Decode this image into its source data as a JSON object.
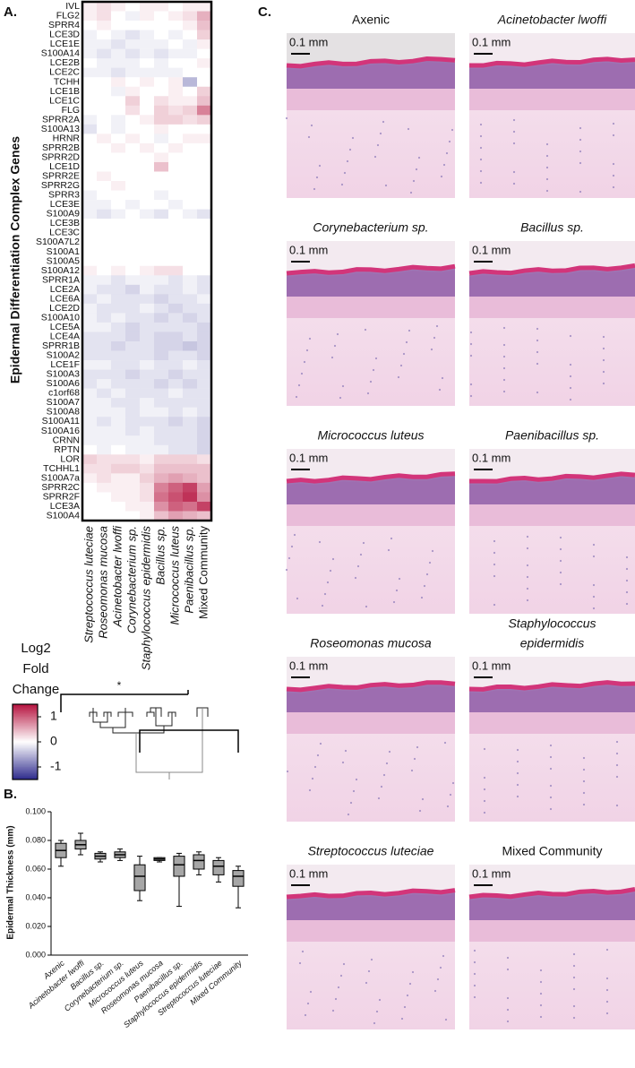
{
  "chart_data": [
    {
      "type": "heatmap",
      "panel": "A.",
      "ylabel": "Epidermal Differentiation Complex Genes",
      "rows": [
        "IVL",
        "FLG2",
        "SPRR4",
        "LCE3D",
        "LCE1E",
        "S100A14",
        "LCE2B",
        "LCE2C",
        "TCHH",
        "LCE1B",
        "LCE1C",
        "FLG",
        "SPRR2A",
        "S100A13",
        "HRNR",
        "SPRR2B",
        "SPRR2D",
        "LCE1D",
        "SPRR2E",
        "SPRR2G",
        "SPRR3",
        "LCE3E",
        "S100A9",
        "LCE3B",
        "LCE3C",
        "S100A7L2",
        "S100A1",
        "S100A5",
        "S100A12",
        "SPRR1A",
        "LCE2A",
        "LCE6A",
        "LCE2D",
        "S100A10",
        "LCE5A",
        "LCE4A",
        "SPRR1B",
        "S100A2",
        "LCE1F",
        "S100A3",
        "S100A6",
        "c1orf68",
        "S100A7",
        "S100A8",
        "S100A11",
        "S100A16",
        "CRNN",
        "RPTN",
        "LOR",
        "TCHHL1",
        "S100A7a",
        "SPRR2C",
        "SPRR2F",
        "LCE3A",
        "S100A4"
      ],
      "columns": [
        "Streptococcus luteciae",
        "Roseomonas mucosa",
        "Acinetobacter lwoffi",
        "Corynebacterium sp.",
        "Staphylococcus epidermidis",
        "Bacillus sp.",
        "Micrococcus luteus",
        "Paenibacillus sp.",
        "Mixed Community"
      ],
      "italic": [
        true,
        true,
        true,
        true,
        true,
        true,
        true,
        true,
        false
      ],
      "values": [
        [
          0.1,
          0.2,
          0.1,
          0,
          0.1,
          0.1,
          0,
          0.1,
          0.1
        ],
        [
          0.1,
          0.2,
          0,
          -0.1,
          0.1,
          0,
          0.1,
          0.2,
          0.5
        ],
        [
          0,
          0.1,
          0,
          0,
          0,
          0,
          0,
          0.1,
          0.4
        ],
        [
          -0.1,
          0,
          -0.1,
          -0.2,
          -0.1,
          0,
          -0.1,
          0,
          0.3
        ],
        [
          -0.1,
          -0.1,
          -0.2,
          -0.1,
          -0.1,
          -0.1,
          0,
          -0.1,
          0.1
        ],
        [
          -0.1,
          -0.2,
          -0.1,
          -0.2,
          -0.1,
          -0.2,
          -0.1,
          -0.1,
          0
        ],
        [
          0,
          -0.1,
          -0.1,
          -0.1,
          0,
          -0.1,
          0,
          0,
          0.1
        ],
        [
          -0.1,
          -0.1,
          -0.2,
          -0.1,
          -0.1,
          -0.1,
          -0.1,
          0,
          0
        ],
        [
          0,
          0,
          0.1,
          0,
          0.1,
          0,
          0.1,
          -0.5,
          0
        ],
        [
          0,
          0,
          -0.1,
          0.1,
          0,
          0,
          0.1,
          0,
          0.3
        ],
        [
          0,
          0,
          0,
          0.3,
          0,
          0.2,
          0.1,
          0.1,
          0.4
        ],
        [
          0,
          0,
          0,
          0.2,
          0,
          0.3,
          0.2,
          0.3,
          0.8
        ],
        [
          -0.1,
          0,
          -0.1,
          0,
          0.1,
          0.3,
          0.3,
          0.2,
          0.3
        ],
        [
          -0.2,
          0,
          -0.1,
          0,
          0,
          0.1,
          0,
          0,
          0
        ],
        [
          0,
          0.1,
          0,
          0.1,
          0,
          -0.1,
          0,
          0.1,
          0.1
        ],
        [
          0,
          0,
          0.1,
          0,
          0.1,
          0,
          0.1,
          0,
          0
        ],
        [
          0,
          0,
          0,
          0,
          0,
          0.1,
          0,
          0,
          0
        ],
        [
          0,
          0,
          0,
          0,
          0,
          0.4,
          0,
          0,
          0
        ],
        [
          0,
          0.1,
          0,
          0,
          0,
          0,
          0,
          0,
          0
        ],
        [
          0,
          0,
          0.1,
          0,
          0,
          0,
          0,
          0,
          0
        ],
        [
          -0.1,
          0,
          0,
          0,
          0,
          -0.1,
          0,
          0,
          0
        ],
        [
          -0.1,
          -0.1,
          0,
          -0.1,
          0,
          0,
          -0.1,
          0,
          0
        ],
        [
          -0.1,
          -0.2,
          -0.1,
          0,
          -0.1,
          -0.2,
          0,
          -0.1,
          -0.2
        ],
        [
          0,
          0,
          0,
          0,
          0,
          0,
          0,
          0,
          0
        ],
        [
          0,
          0,
          0,
          0,
          0,
          0,
          0,
          0,
          0
        ],
        [
          0,
          0,
          0,
          0,
          0,
          0,
          0,
          0,
          0
        ],
        [
          0,
          0,
          0,
          0,
          0,
          0,
          0,
          0,
          0
        ],
        [
          0,
          0,
          0,
          0,
          0,
          0,
          0,
          0,
          0
        ],
        [
          0.1,
          0,
          0.1,
          0,
          0.1,
          0.2,
          0.2,
          0,
          0
        ],
        [
          -0.1,
          -0.1,
          -0.2,
          -0.1,
          -0.1,
          -0.1,
          -0.2,
          -0.1,
          -0.2
        ],
        [
          -0.1,
          -0.2,
          -0.2,
          -0.3,
          -0.1,
          -0.2,
          -0.2,
          -0.1,
          -0.2
        ],
        [
          -0.2,
          -0.1,
          -0.2,
          -0.2,
          -0.2,
          -0.3,
          -0.2,
          -0.2,
          -0.1
        ],
        [
          -0.1,
          -0.2,
          -0.2,
          -0.2,
          -0.1,
          -0.2,
          -0.3,
          -0.2,
          -0.2
        ],
        [
          -0.1,
          -0.2,
          -0.1,
          -0.2,
          -0.2,
          -0.3,
          -0.2,
          -0.3,
          -0.2
        ],
        [
          -0.1,
          -0.1,
          -0.2,
          -0.3,
          -0.2,
          -0.2,
          -0.2,
          -0.2,
          -0.3
        ],
        [
          -0.2,
          -0.2,
          -0.2,
          -0.3,
          -0.2,
          -0.3,
          -0.3,
          -0.2,
          -0.3
        ],
        [
          -0.2,
          -0.2,
          -0.3,
          -0.2,
          -0.2,
          -0.3,
          -0.3,
          -0.4,
          -0.3
        ],
        [
          -0.2,
          -0.2,
          -0.2,
          -0.2,
          -0.2,
          -0.3,
          -0.2,
          -0.2,
          -0.3
        ],
        [
          -0.1,
          -0.1,
          -0.2,
          -0.2,
          -0.1,
          -0.2,
          -0.2,
          -0.1,
          -0.2
        ],
        [
          -0.2,
          -0.2,
          -0.2,
          -0.3,
          -0.2,
          -0.2,
          -0.3,
          -0.2,
          -0.2
        ],
        [
          -0.2,
          -0.1,
          -0.2,
          -0.2,
          -0.2,
          -0.3,
          -0.2,
          -0.3,
          -0.2
        ],
        [
          -0.1,
          -0.2,
          -0.1,
          -0.2,
          -0.2,
          -0.2,
          -0.1,
          -0.2,
          -0.2
        ],
        [
          -0.1,
          -0.1,
          -0.2,
          -0.2,
          -0.1,
          -0.2,
          -0.2,
          -0.2,
          -0.2
        ],
        [
          -0.1,
          -0.1,
          -0.1,
          -0.2,
          -0.1,
          -0.1,
          -0.2,
          -0.1,
          -0.2
        ],
        [
          -0.1,
          -0.2,
          -0.1,
          -0.2,
          -0.2,
          -0.2,
          -0.3,
          -0.2,
          -0.3
        ],
        [
          -0.1,
          -0.1,
          -0.1,
          -0.2,
          -0.1,
          -0.2,
          -0.2,
          -0.2,
          -0.3
        ],
        [
          -0.1,
          -0.1,
          -0.1,
          -0.1,
          -0.1,
          -0.2,
          -0.2,
          -0.2,
          -0.3
        ],
        [
          0,
          -0.1,
          0,
          -0.1,
          -0.1,
          -0.1,
          -0.2,
          -0.2,
          -0.3
        ],
        [
          0.3,
          0.2,
          0.2,
          0.2,
          0.1,
          0.3,
          0.3,
          0.3,
          0.2
        ],
        [
          0.2,
          0.2,
          0.3,
          0.3,
          0.2,
          0.4,
          0.4,
          0.4,
          0.4
        ],
        [
          0.1,
          0.2,
          0.1,
          0.1,
          0.3,
          0.5,
          0.6,
          0.5,
          0.4
        ],
        [
          0,
          0.1,
          0.1,
          0.1,
          0.2,
          0.8,
          1.0,
          1.2,
          0.6
        ],
        [
          0,
          0,
          0.1,
          0.1,
          0.2,
          0.9,
          1.1,
          1.3,
          0.7
        ],
        [
          0,
          0,
          0,
          0.1,
          0.1,
          0.7,
          1.0,
          0.9,
          1.2
        ],
        [
          0,
          0,
          0,
          0,
          0.1,
          0.4,
          0.6,
          0.5,
          0.4
        ]
      ],
      "colorbar": {
        "title": [
          "Log2",
          "Fold",
          "Change"
        ],
        "lim": [
          -1.5,
          1.5
        ],
        "ticks": [
          1,
          0,
          -1
        ],
        "colors": [
          "#2e2a8c",
          "#ffffff",
          "#b5123e"
        ]
      }
    },
    {
      "type": "box",
      "panel": "B.",
      "ylabel": "Epidermal Thickness (mm)",
      "categories": [
        "Axenic",
        "Acinetobacter lwoffi",
        "Bacillus sp.",
        "Corynebacterium sp.",
        "Micrococcus luteus",
        "Roseomonas mucosa",
        "Paenibacillus sp.",
        "Staphylococcus epidermidis",
        "Streptococcus luteciae",
        "Mixed Community"
      ],
      "min": [
        0.062,
        0.07,
        0.065,
        0.066,
        0.038,
        0.065,
        0.034,
        0.056,
        0.051,
        0.033
      ],
      "q1": [
        0.068,
        0.074,
        0.067,
        0.068,
        0.045,
        0.066,
        0.055,
        0.06,
        0.056,
        0.048
      ],
      "median": [
        0.073,
        0.077,
        0.069,
        0.07,
        0.055,
        0.067,
        0.063,
        0.066,
        0.062,
        0.055
      ],
      "q3": [
        0.078,
        0.08,
        0.071,
        0.072,
        0.063,
        0.068,
        0.069,
        0.07,
        0.066,
        0.059
      ],
      "max": [
        0.08,
        0.085,
        0.072,
        0.074,
        0.069,
        0.068,
        0.071,
        0.072,
        0.068,
        0.062
      ],
      "color": "#a6a6a6",
      "annotation": "*",
      "ylim": [
        0,
        0.1
      ],
      "yticks": [
        {
          "value": 0,
          "label": "0.000"
        },
        {
          "value": 0.02,
          "label": "0.020"
        },
        {
          "value": 0.04,
          "label": "0.040"
        },
        {
          "value": 0.06,
          "label": "0.060"
        },
        {
          "value": 0.08,
          "label": "0.080"
        },
        {
          "value": 0.1,
          "label": "0.100"
        }
      ]
    },
    {
      "type": "images",
      "panel": "C.",
      "scale_label": "0.1 mm",
      "images": [
        {
          "title": [
            "Axenic"
          ],
          "italic": false
        },
        {
          "title": [
            "Acinetobacter lwoffi"
          ],
          "italic": true
        },
        {
          "title": [
            "Corynebacterium sp."
          ],
          "italic": true
        },
        {
          "title": [
            "Bacillus sp."
          ],
          "italic": true
        },
        {
          "title": [
            "Micrococcus luteus"
          ],
          "italic": true
        },
        {
          "title": [
            "Paenibacillus sp."
          ],
          "italic": true
        },
        {
          "title": [
            "Roseomonas mucosa"
          ],
          "italic": true
        },
        {
          "title": [
            "Staphylococcus",
            "epidermidis"
          ],
          "italic": true
        },
        {
          "title": [
            "Streptococcus luteciae"
          ],
          "italic": true
        },
        {
          "title": [
            "Mixed Community"
          ],
          "italic": false
        }
      ]
    }
  ]
}
